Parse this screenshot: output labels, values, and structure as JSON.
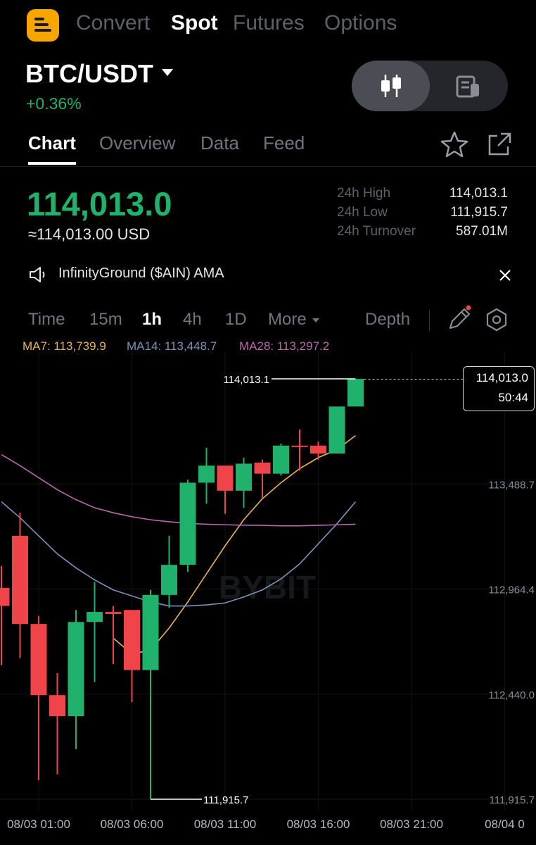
{
  "topnav": {
    "items": [
      "Convert",
      "Spot",
      "Futures",
      "Options"
    ],
    "active": "Spot"
  },
  "pair": {
    "symbol": "BTC/USDT",
    "change": "+0.36%"
  },
  "tabs": {
    "items": [
      "Chart",
      "Overview",
      "Data",
      "Feed"
    ],
    "active": "Chart"
  },
  "ticker": {
    "last_price": "114,013.0",
    "usd_equivalent": "≈114,013.00 USD",
    "stats": [
      {
        "label": "24h High",
        "value": "114,013.1"
      },
      {
        "label": "24h Low",
        "value": "111,915.7"
      },
      {
        "label": "24h Turnover",
        "value": "587.01M"
      }
    ]
  },
  "announcement": {
    "text": "InfinityGround ($AIN) AMA"
  },
  "intervals": {
    "items": [
      "Time",
      "15m",
      "1h",
      "4h",
      "1D",
      "More"
    ],
    "active": "1h",
    "depth": "Depth"
  },
  "indicators": {
    "ma7": {
      "label": "MA7: 113,739.9",
      "color": "#e8b55a"
    },
    "ma14": {
      "label": "MA14: 113,448.7",
      "color": "#7b93b8"
    },
    "ma28": {
      "label": "MA28: 113,297.2",
      "color": "#b86ba9"
    }
  },
  "chart_data": {
    "type": "candlestick",
    "watermark": "BYBIT",
    "x_labels": [
      "08/03 01:00",
      "08/03 06:00",
      "08/03 11:00",
      "08/03 16:00",
      "08/03 21:00",
      "08/04 0"
    ],
    "y_labels": [
      "113,488.7",
      "112,964.4",
      "112,440.0",
      "111,915.7"
    ],
    "ylim": [
      111915.7,
      114013.1
    ],
    "high_marker": "114,013.1",
    "low_marker": "111,915.7",
    "current_price": "114,013.0",
    "countdown": "50:44",
    "up_color": "#20b26c",
    "down_color": "#ef454a",
    "candles": [
      {
        "t": "08/02 23:00",
        "o": 112970,
        "h": 113080,
        "l": 112585,
        "c": 112880
      },
      {
        "t": "08/03 00:00",
        "o": 113230,
        "h": 113345,
        "l": 112620,
        "c": 112790
      },
      {
        "t": "08/03 01:00",
        "o": 112790,
        "h": 112830,
        "l": 112010,
        "c": 112435
      },
      {
        "t": "08/03 02:00",
        "o": 112435,
        "h": 112545,
        "l": 112040,
        "c": 112330
      },
      {
        "t": "08/03 03:00",
        "o": 112330,
        "h": 112860,
        "l": 112165,
        "c": 112800
      },
      {
        "t": "08/03 04:00",
        "o": 112800,
        "h": 113000,
        "l": 112500,
        "c": 112850
      },
      {
        "t": "08/03 05:00",
        "o": 112850,
        "h": 112880,
        "l": 112590,
        "c": 112840
      },
      {
        "t": "08/03 06:00",
        "o": 112860,
        "h": 112860,
        "l": 112400,
        "c": 112560
      },
      {
        "t": "08/03 07:00",
        "o": 112560,
        "h": 112960,
        "l": 111915.7,
        "c": 112935
      },
      {
        "t": "08/03 08:00",
        "o": 112935,
        "h": 113230,
        "l": 112870,
        "c": 113085
      },
      {
        "t": "08/03 09:00",
        "o": 113085,
        "h": 113510,
        "l": 113050,
        "c": 113495
      },
      {
        "t": "08/03 10:00",
        "o": 113495,
        "h": 113670,
        "l": 113390,
        "c": 113580
      },
      {
        "t": "08/03 11:00",
        "o": 113580,
        "h": 113580,
        "l": 113340,
        "c": 113455
      },
      {
        "t": "08/03 12:00",
        "o": 113455,
        "h": 113620,
        "l": 113370,
        "c": 113590
      },
      {
        "t": "08/03 13:00",
        "o": 113595,
        "h": 113610,
        "l": 113420,
        "c": 113540
      },
      {
        "t": "08/03 14:00",
        "o": 113540,
        "h": 113690,
        "l": 113530,
        "c": 113680
      },
      {
        "t": "08/03 15:00",
        "o": 113680,
        "h": 113760,
        "l": 113555,
        "c": 113675
      },
      {
        "t": "08/03 16:00",
        "o": 113680,
        "h": 113700,
        "l": 113610,
        "c": 113640
      },
      {
        "t": "08/03 17:00",
        "o": 113640,
        "h": 113870,
        "l": 113640,
        "c": 113875
      },
      {
        "t": "08/03 18:00",
        "o": 113875,
        "h": 114013.1,
        "l": 113875,
        "c": 114013
      }
    ],
    "series": [
      {
        "name": "MA7",
        "values": [
          null,
          null,
          null,
          null,
          null,
          null,
          112720,
          112640,
          112660,
          112770,
          112900,
          113040,
          113180,
          113310,
          113415,
          113495,
          113565,
          113620,
          113660,
          113730
        ]
      },
      {
        "name": "MA14",
        "values": [
          113400,
          113320,
          113230,
          113140,
          113070,
          113010,
          112960,
          112930,
          112900,
          112880,
          112880,
          112885,
          112895,
          112925,
          112960,
          113015,
          113090,
          113190,
          113290,
          113400
        ]
      },
      {
        "name": "MA28",
        "values": [
          113635,
          113580,
          113520,
          113460,
          113410,
          113370,
          113345,
          113325,
          113310,
          113300,
          113292,
          113288,
          113285,
          113283,
          113282,
          113280,
          113280,
          113282,
          113285,
          113288
        ]
      }
    ]
  }
}
